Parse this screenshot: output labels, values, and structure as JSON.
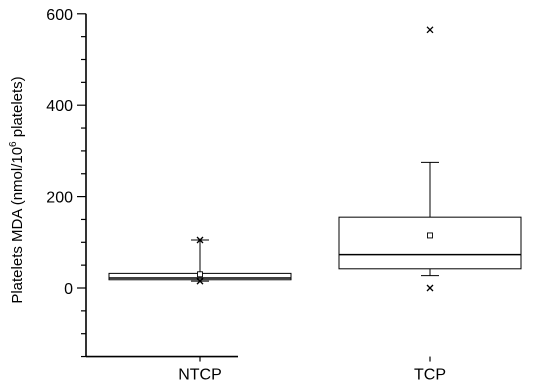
{
  "chart_data": {
    "type": "box",
    "ylabel_main": "Platelets MDA (nmol/10",
    "ylabel_sup": "6",
    "ylabel_end": " platelets)",
    "ylim": [
      -150,
      600
    ],
    "yticks": [
      0,
      200,
      400,
      600
    ],
    "categories": [
      "NTCP",
      "TCP"
    ],
    "series": [
      {
        "category": "NTCP",
        "whisker_low": 15,
        "q1": 18,
        "median": 22,
        "q3": 32,
        "whisker_high": 105,
        "mean": 30,
        "outliers": [
          15,
          105
        ]
      },
      {
        "category": "TCP",
        "whisker_low": 27,
        "q1": 42,
        "median": 73,
        "q3": 155,
        "whisker_high": 275,
        "mean": 115,
        "outliers": [
          0,
          565
        ]
      }
    ]
  }
}
